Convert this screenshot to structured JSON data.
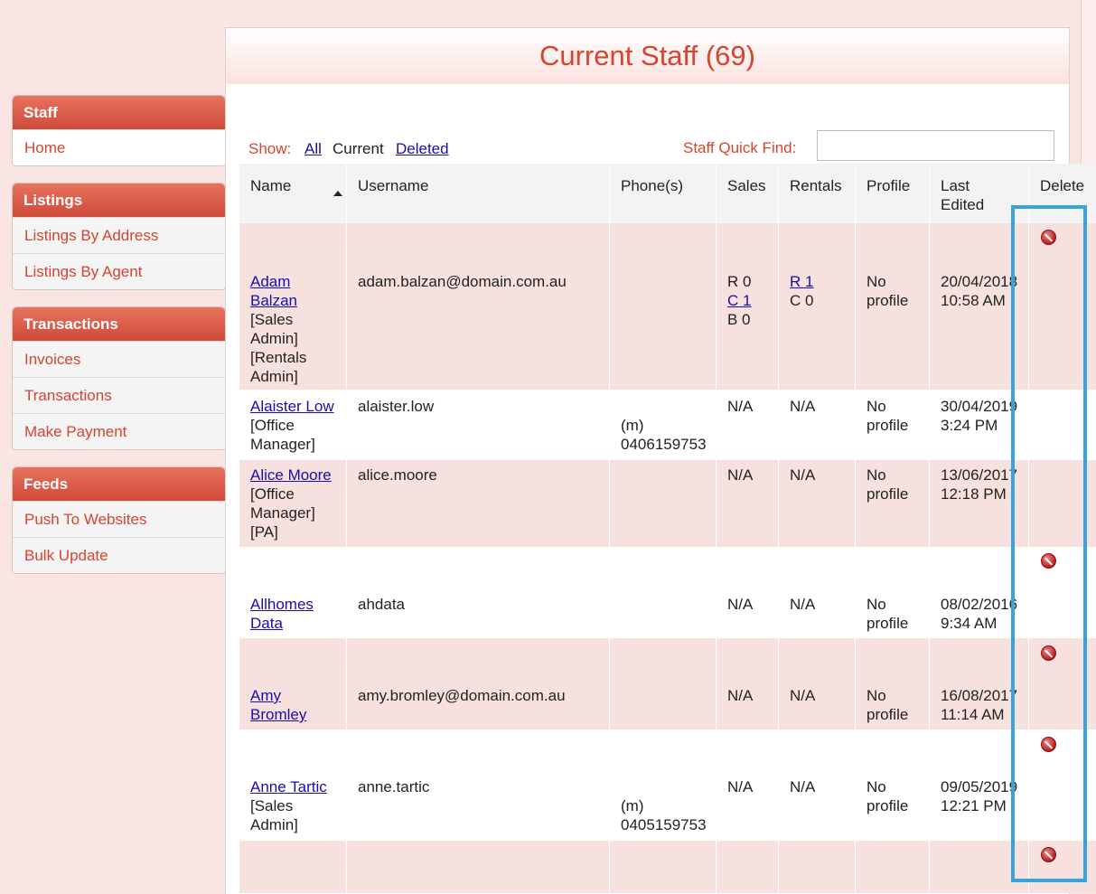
{
  "sidebar": {
    "sections": [
      {
        "title": "Staff",
        "items": [
          "Home"
        ]
      },
      {
        "title": "Listings",
        "items": [
          "Listings By Address",
          "Listings By Agent"
        ]
      },
      {
        "title": "Transactions",
        "items": [
          "Invoices",
          "Transactions",
          "Make Payment"
        ]
      },
      {
        "title": "Feeds",
        "items": [
          "Push To Websites",
          "Bulk Update"
        ]
      }
    ]
  },
  "main": {
    "title": "Current Staff (69)",
    "filter": {
      "label": "Show:",
      "all": "All",
      "current": "Current",
      "deleted": "Deleted"
    },
    "quick_find": {
      "label": "Staff Quick Find:",
      "value": ""
    },
    "columns": [
      "Name",
      "Username",
      "Phone(s)",
      "Sales",
      "Rentals",
      "Profile",
      "Last",
      "Edited",
      "Delete"
    ]
  },
  "rows": [
    {
      "name": [
        "Adam",
        "Balzan"
      ],
      "roles": [
        "[Sales",
        "Admin]",
        "[Rentals",
        "Admin]"
      ],
      "username": "adam.balzan@domain.com.au",
      "phone": [
        "",
        ""
      ],
      "sales": [
        "R 0",
        "C 1",
        "B 0"
      ],
      "rentals": [
        "R 1",
        "C 0"
      ],
      "profile": [
        "No",
        "profile"
      ],
      "edited": [
        "20/04/2018",
        "10:58 AM"
      ]
    },
    {
      "name": [
        "Alaister Low"
      ],
      "roles": [
        "[Office",
        "Manager]"
      ],
      "username": "alaister.low",
      "phone": [
        "(m)",
        "0406159753"
      ],
      "sales": [
        "N/A"
      ],
      "rentals": [
        "N/A"
      ],
      "profile": [
        "No",
        "profile"
      ],
      "edited": [
        "30/04/2019",
        "3:24 PM"
      ]
    },
    {
      "name": [
        "Alice Moore"
      ],
      "roles": [
        "[Office",
        "Manager]",
        "[PA]"
      ],
      "username": "alice.moore",
      "phone": [
        "",
        ""
      ],
      "sales": [
        "N/A"
      ],
      "rentals": [
        "N/A"
      ],
      "profile": [
        "No",
        "profile"
      ],
      "edited": [
        "13/06/2017",
        "12:18 PM"
      ]
    },
    {
      "name": [
        "Allhomes",
        "Data"
      ],
      "roles": [],
      "username": "ahdata",
      "phone": [
        "",
        ""
      ],
      "sales": [
        "N/A"
      ],
      "rentals": [
        "N/A"
      ],
      "profile": [
        "No",
        "profile"
      ],
      "edited": [
        "08/02/2016",
        "9:34 AM"
      ]
    },
    {
      "name": [
        "Amy",
        "Bromley"
      ],
      "roles": [],
      "username": "amy.bromley@domain.com.au",
      "phone": [
        "",
        ""
      ],
      "sales": [
        "N/A"
      ],
      "rentals": [
        "N/A"
      ],
      "profile": [
        "No",
        "profile"
      ],
      "edited": [
        "16/08/2017",
        "11:14 AM"
      ]
    },
    {
      "name": [
        "Anne Tartic"
      ],
      "roles": [
        "[Sales",
        "Admin]"
      ],
      "username": "anne.tartic",
      "phone": [
        "(m)",
        "0405159753"
      ],
      "sales": [
        "N/A"
      ],
      "rentals": [
        "N/A"
      ],
      "profile": [
        "No",
        "profile"
      ],
      "edited": [
        "09/05/2019",
        "12:21 PM"
      ]
    }
  ]
}
